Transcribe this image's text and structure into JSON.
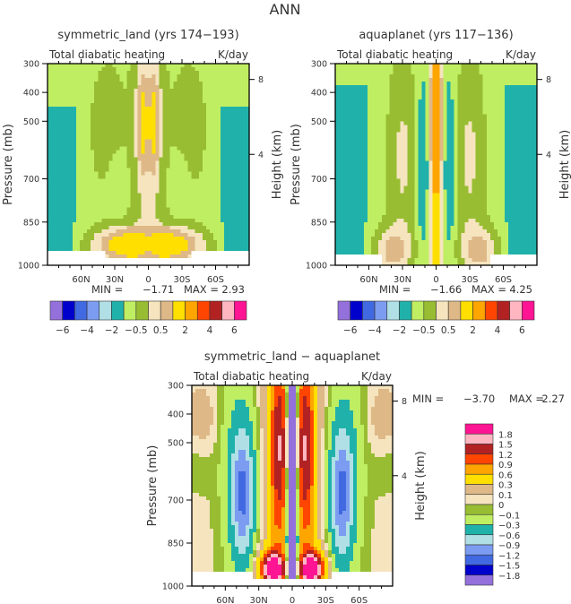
{
  "figure_title": "ANN",
  "chart_data": [
    {
      "type": "heatmap",
      "title": "symmetric_land (yrs 174−193)",
      "subtitle_left": "Total diabatic heating",
      "subtitle_right": "K/day",
      "ylabel": "Pressure (mb)",
      "ylabel_right": "Height (km)",
      "xlabel": "",
      "xticks": [
        "60N",
        "30N",
        "0",
        "30S",
        "60S"
      ],
      "xtick_values": [
        60,
        30,
        0,
        -30,
        -60
      ],
      "xlim": [
        90,
        -90
      ],
      "yticks": [
        300,
        400,
        500,
        700,
        850,
        1000
      ],
      "ylim": [
        300,
        1000
      ],
      "yticks_right": [
        "8",
        "4"
      ],
      "yticks_right_pressure": [
        355,
        615
      ],
      "stats": {
        "min_label": "MIN =",
        "min": "−1.71",
        "max_label": "MAX =",
        "max": "2.93"
      },
      "colorbar": {
        "orientation": "horizontal",
        "levels": [
          -6,
          -5,
          -4,
          -3,
          -2,
          -1,
          -0.5,
          0,
          0.5,
          1,
          2,
          3,
          4,
          5,
          6
        ],
        "labels": [
          "−6",
          "−4",
          "−2",
          "−0.5",
          "0.5",
          "2",
          "4",
          "6"
        ],
        "colors": [
          "#9370DB",
          "#0000CD",
          "#4169E1",
          "#7B9CF0",
          "#B0E0E6",
          "#20B2AA",
          "#C0EE62",
          "#98BD32",
          "#F5E4BE",
          "#DEB887",
          "#FFDF00",
          "#FFA500",
          "#FF4500",
          "#B22222",
          "#FFB6C1",
          "#FF1493"
        ]
      },
      "field": "symmetric_land"
    },
    {
      "type": "heatmap",
      "title": "aquaplanet (yrs 117−136)",
      "subtitle_left": "Total diabatic heating",
      "subtitle_right": "K/day",
      "ylabel": "Pressure (mb)",
      "ylabel_right": "Height (km)",
      "xticks": [
        "60N",
        "30N",
        "0",
        "30S",
        "60S"
      ],
      "xtick_values": [
        60,
        30,
        0,
        -30,
        -60
      ],
      "xlim": [
        90,
        -90
      ],
      "yticks": [
        300,
        400,
        500,
        700,
        850,
        1000
      ],
      "ylim": [
        300,
        1000
      ],
      "yticks_right": [
        "8",
        "4"
      ],
      "yticks_right_pressure": [
        355,
        615
      ],
      "stats": {
        "min_label": "MIN =",
        "min": "−1.66",
        "max_label": "MAX =",
        "max": "4.25"
      },
      "colorbar": {
        "orientation": "horizontal",
        "levels": [
          -6,
          -5,
          -4,
          -3,
          -2,
          -1,
          -0.5,
          0,
          0.5,
          1,
          2,
          3,
          4,
          5,
          6
        ],
        "labels": [
          "−6",
          "−4",
          "−2",
          "−0.5",
          "0.5",
          "2",
          "4",
          "6"
        ],
        "colors": [
          "#9370DB",
          "#0000CD",
          "#4169E1",
          "#7B9CF0",
          "#B0E0E6",
          "#20B2AA",
          "#C0EE62",
          "#98BD32",
          "#F5E4BE",
          "#DEB887",
          "#FFDF00",
          "#FFA500",
          "#FF4500",
          "#B22222",
          "#FFB6C1",
          "#FF1493"
        ]
      },
      "field": "aquaplanet"
    },
    {
      "type": "heatmap",
      "title": "symmetric_land − aquaplanet",
      "subtitle_left": "Total diabatic heating",
      "subtitle_right": "K/day",
      "ylabel": "Pressure (mb)",
      "ylabel_right": "Height (km)",
      "xticks": [
        "60N",
        "30N",
        "0",
        "30S",
        "60S"
      ],
      "xtick_values": [
        60,
        30,
        0,
        -30,
        -60
      ],
      "xlim": [
        90,
        -90
      ],
      "yticks": [
        300,
        400,
        500,
        700,
        850,
        1000
      ],
      "ylim": [
        300,
        1000
      ],
      "yticks_right": [
        "8",
        "4"
      ],
      "yticks_right_pressure": [
        355,
        615
      ],
      "stats": {
        "min_label": "MIN =",
        "min": "−3.70",
        "max_label": "MAX =",
        "max": "2.27"
      },
      "colorbar": {
        "orientation": "vertical",
        "levels": [
          -1.8,
          -1.5,
          -1.2,
          -0.9,
          -0.6,
          -0.3,
          -0.1,
          0,
          0.1,
          0.3,
          0.6,
          0.9,
          1.2,
          1.5,
          1.8
        ],
        "labels": [
          "1.8",
          "1.5",
          "1.2",
          "0.9",
          "0.6",
          "0.3",
          "0.1",
          "0",
          "−0.1",
          "−0.3",
          "−0.6",
          "−0.9",
          "−1.2",
          "−1.5",
          "−1.8"
        ],
        "colors": [
          "#9370DB",
          "#0000CD",
          "#4169E1",
          "#7B9CF0",
          "#B0E0E6",
          "#20B2AA",
          "#C0EE62",
          "#98BD32",
          "#F5E4BE",
          "#DEB887",
          "#FFDF00",
          "#FFA500",
          "#FF4500",
          "#B22222",
          "#FFB6C1",
          "#FF1493"
        ]
      },
      "field": "difference"
    }
  ]
}
